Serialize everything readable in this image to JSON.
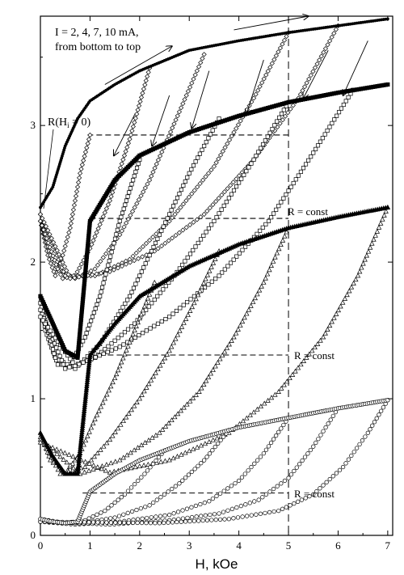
{
  "chart_data": {
    "type": "scatter",
    "title": "",
    "xlabel": "H, kOe",
    "ylabel": "",
    "xlim": [
      0,
      7.1
    ],
    "ylim": [
      0,
      3.8
    ],
    "x_ticks": [
      "0",
      "1",
      "2",
      "3",
      "4",
      "5",
      "6",
      "7"
    ],
    "y_ticks": [
      "0",
      "1",
      "2",
      "3"
    ],
    "vline_x": 5,
    "annotations": {
      "current_line1": "I = 2, 4, 7, 10 mA,",
      "current_line2": "from bottom to top",
      "r_hi_zero": "R(H",
      "r_hi_sub": "i",
      "r_hi_rest": " = 0)",
      "r_const_1": "R = const",
      "r_const_2": "R = const",
      "r_const_3": "R = const"
    },
    "dashed_levels": [
      {
        "y": 2.93,
        "x_from": 0.95,
        "x_to": 5.0
      },
      {
        "y": 2.32,
        "x_from": 1.0,
        "x_to": 5.0
      },
      {
        "y": 1.32,
        "x_from": 1.0,
        "x_to": 5.0
      },
      {
        "y": 0.31,
        "x_from": 0.85,
        "x_to": 5.0
      }
    ],
    "series": [
      {
        "current_mA": 10,
        "marker": "star",
        "envelope": [
          [
            0,
            2.4
          ],
          [
            0.25,
            2.55
          ],
          [
            0.5,
            2.85
          ],
          [
            0.75,
            3.05
          ],
          [
            1,
            3.18
          ],
          [
            1.5,
            3.3
          ],
          [
            2,
            3.4
          ],
          [
            3,
            3.55
          ],
          [
            4,
            3.62
          ],
          [
            5,
            3.68
          ],
          [
            6,
            3.73
          ],
          [
            7,
            3.78
          ]
        ],
        "descending": [
          {
            "start": [
              1.0,
              2.93
            ],
            "points": [
              [
                1.0,
                2.93
              ],
              [
                0.8,
                2.65
              ],
              [
                0.6,
                2.25
              ],
              [
                0.45,
                2.05
              ],
              [
                0.3,
                1.9
              ],
              [
                0.15,
                2.05
              ],
              [
                0,
                2.3
              ]
            ]
          },
          {
            "start": [
              2.2,
              3.42
            ],
            "points": [
              [
                2.2,
                3.42
              ],
              [
                1.8,
                2.9
              ],
              [
                1.4,
                2.45
              ],
              [
                1,
                2.1
              ],
              [
                0.7,
                1.9
              ],
              [
                0.45,
                1.88
              ],
              [
                0.2,
                2.05
              ],
              [
                0,
                2.3
              ]
            ]
          },
          {
            "start": [
              3.3,
              3.52
            ],
            "points": [
              [
                3.3,
                3.52
              ],
              [
                2.8,
                3.1
              ],
              [
                2.2,
                2.6
              ],
              [
                1.6,
                2.2
              ],
              [
                1.1,
                1.95
              ],
              [
                0.7,
                1.88
              ],
              [
                0.35,
                1.95
              ],
              [
                0,
                2.3
              ]
            ]
          },
          {
            "start": [
              5.0,
              3.68
            ],
            "points": [
              [
                5.0,
                3.68
              ],
              [
                4.3,
                3.2
              ],
              [
                3.5,
                2.7
              ],
              [
                2.6,
                2.3
              ],
              [
                1.8,
                2.02
              ],
              [
                1.1,
                1.9
              ],
              [
                0.5,
                1.9
              ],
              [
                0,
                2.35
              ]
            ]
          },
          {
            "start": [
              6.0,
              3.73
            ],
            "points": [
              [
                6.0,
                3.73
              ],
              [
                5.2,
                3.2
              ],
              [
                4.3,
                2.75
              ],
              [
                3.3,
                2.35
              ],
              [
                2.3,
                2.08
              ],
              [
                1.4,
                1.93
              ],
              [
                0.6,
                1.88
              ],
              [
                0,
                2.35
              ]
            ]
          }
        ]
      },
      {
        "current_mA": 7,
        "marker": "square",
        "envelope": [
          [
            0,
            1.75
          ],
          [
            0.25,
            1.55
          ],
          [
            0.5,
            1.35
          ],
          [
            0.75,
            1.3
          ],
          [
            1,
            2.3
          ],
          [
            1.5,
            2.6
          ],
          [
            2,
            2.78
          ],
          [
            3,
            2.95
          ],
          [
            4,
            3.07
          ],
          [
            5,
            3.17
          ],
          [
            6,
            3.24
          ],
          [
            7,
            3.3
          ]
        ],
        "descending": [
          {
            "start": [
              2.0,
              2.75
            ],
            "points": [
              [
                2.0,
                2.75
              ],
              [
                1.6,
                2.3
              ],
              [
                1.2,
                1.75
              ],
              [
                0.9,
                1.45
              ],
              [
                0.6,
                1.25
              ],
              [
                0.35,
                1.25
              ],
              [
                0.1,
                1.5
              ],
              [
                0,
                1.75
              ]
            ]
          },
          {
            "start": [
              3.6,
              3.05
            ],
            "points": [
              [
                3.6,
                3.05
              ],
              [
                3.0,
                2.65
              ],
              [
                2.4,
                2.2
              ],
              [
                1.8,
                1.75
              ],
              [
                1.2,
                1.4
              ],
              [
                0.7,
                1.22
              ],
              [
                0.3,
                1.3
              ],
              [
                0,
                1.7
              ]
            ]
          },
          {
            "start": [
              5.0,
              3.17
            ],
            "points": [
              [
                5.0,
                3.17
              ],
              [
                4.3,
                2.75
              ],
              [
                3.5,
                2.3
              ],
              [
                2.7,
                1.9
              ],
              [
                1.9,
                1.55
              ],
              [
                1.1,
                1.3
              ],
              [
                0.5,
                1.22
              ],
              [
                0,
                1.65
              ]
            ]
          },
          {
            "start": [
              6.3,
              3.26
            ],
            "points": [
              [
                6.3,
                3.26
              ],
              [
                5.5,
                2.8
              ],
              [
                4.6,
                2.3
              ],
              [
                3.6,
                1.9
              ],
              [
                2.6,
                1.6
              ],
              [
                1.6,
                1.38
              ],
              [
                0.7,
                1.24
              ],
              [
                0,
                1.6
              ]
            ]
          }
        ]
      },
      {
        "current_mA": 4,
        "marker": "triangle",
        "envelope": [
          [
            0,
            0.75
          ],
          [
            0.25,
            0.58
          ],
          [
            0.5,
            0.45
          ],
          [
            0.75,
            0.45
          ],
          [
            1,
            1.32
          ],
          [
            1.5,
            1.55
          ],
          [
            2,
            1.75
          ],
          [
            3,
            1.97
          ],
          [
            4,
            2.13
          ],
          [
            5,
            2.25
          ],
          [
            6,
            2.33
          ],
          [
            7,
            2.4
          ]
        ],
        "descending": [
          {
            "start": [
              2.3,
              1.85
            ],
            "points": [
              [
                2.3,
                1.85
              ],
              [
                1.9,
                1.5
              ],
              [
                1.5,
                1.15
              ],
              [
                1.1,
                0.85
              ],
              [
                0.8,
                0.6
              ],
              [
                0.5,
                0.45
              ],
              [
                0.2,
                0.55
              ],
              [
                0,
                0.75
              ]
            ]
          },
          {
            "start": [
              3.6,
              2.08
            ],
            "points": [
              [
                3.6,
                2.08
              ],
              [
                3.1,
                1.7
              ],
              [
                2.6,
                1.35
              ],
              [
                2.0,
                1.0
              ],
              [
                1.4,
                0.7
              ],
              [
                0.9,
                0.5
              ],
              [
                0.4,
                0.45
              ],
              [
                0,
                0.72
              ]
            ]
          },
          {
            "start": [
              5.0,
              2.25
            ],
            "points": [
              [
                5.0,
                2.25
              ],
              [
                4.5,
                1.85
              ],
              [
                3.9,
                1.45
              ],
              [
                3.2,
                1.05
              ],
              [
                2.4,
                0.75
              ],
              [
                1.6,
                0.55
              ],
              [
                0.8,
                0.45
              ],
              [
                0,
                0.7
              ]
            ]
          },
          {
            "start": [
              7.0,
              2.4
            ],
            "points": [
              [
                7.0,
                2.4
              ],
              [
                6.4,
                1.9
              ],
              [
                5.7,
                1.45
              ],
              [
                4.8,
                1.05
              ],
              [
                3.8,
                0.75
              ],
              [
                2.6,
                0.55
              ],
              [
                1.4,
                0.46
              ],
              [
                0,
                0.68
              ]
            ]
          }
        ]
      },
      {
        "current_mA": 2,
        "marker": "circle",
        "envelope": [
          [
            0,
            0.12
          ],
          [
            0.25,
            0.1
          ],
          [
            0.5,
            0.09
          ],
          [
            0.75,
            0.1
          ],
          [
            1,
            0.32
          ],
          [
            1.5,
            0.45
          ],
          [
            2,
            0.55
          ],
          [
            3,
            0.69
          ],
          [
            4,
            0.79
          ],
          [
            5,
            0.86
          ],
          [
            6,
            0.93
          ],
          [
            7,
            0.99
          ]
        ],
        "descending": [
          {
            "start": [
              2.5,
              0.62
            ],
            "points": [
              [
                2.5,
                0.62
              ],
              [
                2.1,
                0.45
              ],
              [
                1.7,
                0.3
              ],
              [
                1.3,
                0.18
              ],
              [
                0.9,
                0.11
              ],
              [
                0.5,
                0.09
              ],
              [
                0,
                0.12
              ]
            ]
          },
          {
            "start": [
              3.8,
              0.77
            ],
            "points": [
              [
                3.8,
                0.77
              ],
              [
                3.3,
                0.55
              ],
              [
                2.8,
                0.38
              ],
              [
                2.2,
                0.22
              ],
              [
                1.5,
                0.13
              ],
              [
                0.8,
                0.09
              ],
              [
                0,
                0.1
              ]
            ]
          },
          {
            "start": [
              5.0,
              0.86
            ],
            "points": [
              [
                5.0,
                0.86
              ],
              [
                4.5,
                0.6
              ],
              [
                4.0,
                0.4
              ],
              [
                3.4,
                0.25
              ],
              [
                2.6,
                0.15
              ],
              [
                1.6,
                0.1
              ],
              [
                0.7,
                0.08
              ],
              [
                0,
                0.1
              ]
            ]
          },
          {
            "start": [
              6.0,
              0.93
            ],
            "points": [
              [
                6.0,
                0.93
              ],
              [
                5.5,
                0.65
              ],
              [
                5.0,
                0.42
              ],
              [
                4.4,
                0.26
              ],
              [
                3.6,
                0.16
              ],
              [
                2.6,
                0.11
              ],
              [
                1.4,
                0.08
              ],
              [
                0,
                0.1
              ]
            ]
          },
          {
            "start": [
              7.0,
              0.99
            ],
            "points": [
              [
                7.0,
                0.99
              ],
              [
                6.6,
                0.75
              ],
              [
                6.1,
                0.5
              ],
              [
                5.5,
                0.3
              ],
              [
                4.8,
                0.18
              ],
              [
                3.8,
                0.12
              ],
              [
                2.4,
                0.09
              ],
              [
                0,
                0.1
              ]
            ]
          }
        ]
      }
    ],
    "arrows": [
      {
        "from": [
          1.3,
          3.3
        ],
        "to": [
          2.65,
          3.58
        ]
      },
      {
        "from": [
          3.9,
          3.7
        ],
        "to": [
          5.4,
          3.8
        ]
      },
      {
        "from": [
          1.9,
          3.08
        ],
        "to": [
          1.48,
          2.78
        ]
      },
      {
        "from": [
          2.6,
          3.22
        ],
        "to": [
          2.25,
          2.85
        ]
      },
      {
        "from": [
          3.4,
          3.4
        ],
        "to": [
          3.05,
          2.98
        ]
      },
      {
        "from": [
          4.5,
          3.48
        ],
        "to": [
          4.15,
          3.08
        ]
      },
      {
        "from": [
          5.8,
          3.55
        ],
        "to": [
          5.3,
          3.2
        ]
      },
      {
        "from": [
          6.6,
          3.62
        ],
        "to": [
          6.1,
          3.22
        ]
      }
    ]
  }
}
